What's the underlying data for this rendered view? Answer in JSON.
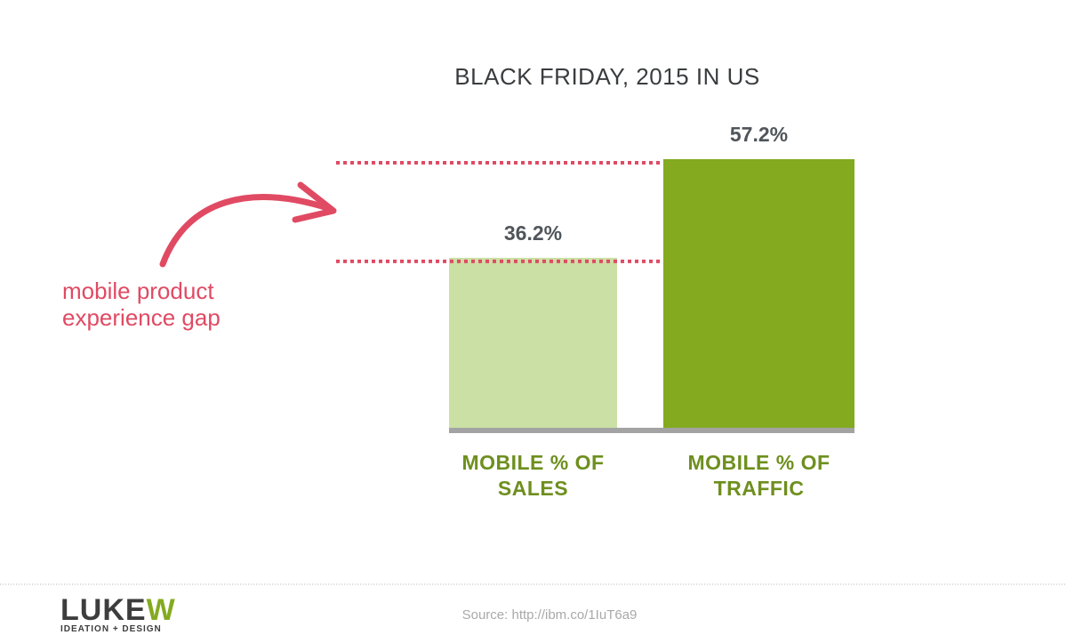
{
  "chart_data": {
    "type": "bar",
    "title": "BLACK FRIDAY, 2015 IN US",
    "categories": [
      [
        "MOBILE % OF",
        "SALES"
      ],
      [
        "MOBILE % OF",
        "TRAFFIC"
      ]
    ],
    "values": [
      36.2,
      57.2
    ],
    "value_labels": [
      "36.2%",
      "57.2%"
    ],
    "bar_colors": [
      "#cbe0a5",
      "#84aa20"
    ],
    "ylim": [
      0,
      57.2
    ],
    "grid": false,
    "annotation": {
      "lines": [
        "mobile product",
        "experience gap"
      ],
      "color": "#e04a63"
    }
  },
  "footer": {
    "source": "Source: http://ibm.co/1IuT6a9",
    "logo": {
      "part1": "LUKE",
      "part2": "W",
      "tagline": "IDEATION + DESIGN",
      "color_dark": "#3d3d3d",
      "color_green": "#84aa20"
    }
  }
}
